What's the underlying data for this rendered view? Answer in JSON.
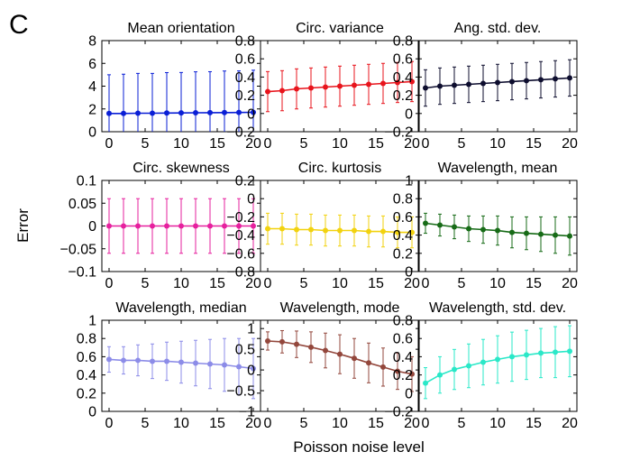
{
  "figure": {
    "panel_letter": "C",
    "ylabel": "Error",
    "xlabel": "Poisson noise level"
  },
  "chart_data": [
    {
      "type": "line",
      "title": "Mean orientation",
      "color": "#0a1fd6",
      "x": [
        0,
        2,
        4,
        6,
        8,
        10,
        12,
        14,
        16,
        18,
        20
      ],
      "y": [
        1.6,
        1.6,
        1.62,
        1.62,
        1.64,
        1.65,
        1.66,
        1.67,
        1.68,
        1.69,
        1.7
      ],
      "err": [
        3.4,
        3.45,
        3.5,
        3.5,
        3.55,
        3.55,
        3.6,
        3.6,
        3.65,
        3.65,
        3.7
      ],
      "ylim": [
        0,
        8
      ],
      "yticks": [
        "0",
        "2",
        "4",
        "6",
        "8"
      ],
      "xticks": [
        "0",
        "5",
        "10",
        "15",
        "20"
      ]
    },
    {
      "type": "line",
      "title": "Circ. variance",
      "color": "#e8141c",
      "x": [
        0,
        2,
        4,
        6,
        8,
        10,
        12,
        14,
        16,
        18,
        20
      ],
      "y": [
        0.24,
        0.25,
        0.27,
        0.28,
        0.29,
        0.3,
        0.31,
        0.32,
        0.33,
        0.34,
        0.35
      ],
      "err": [
        0.22,
        0.22,
        0.22,
        0.22,
        0.22,
        0.22,
        0.22,
        0.22,
        0.22,
        0.22,
        0.22
      ],
      "ylim": [
        -0.2,
        0.8
      ],
      "yticks": [
        "−0.2",
        "0",
        "0.2",
        "0.4",
        "0.6",
        "0.8"
      ],
      "xticks": [
        "0",
        "5",
        "10",
        "15",
        "20"
      ]
    },
    {
      "type": "line",
      "title": "Ang. std. dev.",
      "color": "#0d0d2e",
      "x": [
        0,
        2,
        4,
        6,
        8,
        10,
        12,
        14,
        16,
        18,
        20
      ],
      "y": [
        0.28,
        0.3,
        0.31,
        0.32,
        0.33,
        0.34,
        0.35,
        0.36,
        0.37,
        0.38,
        0.39
      ],
      "err": [
        0.2,
        0.2,
        0.2,
        0.2,
        0.2,
        0.2,
        0.2,
        0.2,
        0.2,
        0.2,
        0.2
      ],
      "ylim": [
        -0.2,
        0.8
      ],
      "yticks": [
        "−0.2",
        "0",
        "0.2",
        "0.4",
        "0.6",
        "0.8"
      ],
      "xticks": [
        "0",
        "5",
        "10",
        "15",
        "20"
      ]
    },
    {
      "type": "line",
      "title": "Circ. skewness",
      "color": "#e6209e",
      "x": [
        0,
        2,
        4,
        6,
        8,
        10,
        12,
        14,
        16,
        18,
        20
      ],
      "y": [
        0,
        0,
        0,
        0,
        0,
        0,
        0,
        0,
        0,
        0,
        0
      ],
      "err": [
        0.06,
        0.06,
        0.06,
        0.06,
        0.06,
        0.06,
        0.06,
        0.06,
        0.06,
        0.06,
        0.06
      ],
      "ylim": [
        -0.1,
        0.1
      ],
      "yticks": [
        "−0.1",
        "−0.05",
        "0",
        "0.05",
        "0.1"
      ],
      "xticks": [
        "0",
        "5",
        "10",
        "15",
        "20"
      ]
    },
    {
      "type": "line",
      "title": "Circ. kurtosis",
      "color": "#f2d20e",
      "x": [
        0,
        2,
        4,
        6,
        8,
        10,
        12,
        14,
        16,
        18,
        20
      ],
      "y": [
        -0.33,
        -0.33,
        -0.34,
        -0.34,
        -0.35,
        -0.35,
        -0.35,
        -0.36,
        -0.36,
        -0.37,
        -0.37
      ],
      "err": [
        0.17,
        0.17,
        0.17,
        0.17,
        0.17,
        0.17,
        0.17,
        0.17,
        0.17,
        0.17,
        0.17
      ],
      "ylim": [
        -0.8,
        0.2
      ],
      "yticks": [
        "−0.8",
        "−0.6",
        "−0.4",
        "−0.2",
        "0",
        "0.2"
      ],
      "xticks": [
        "0",
        "5",
        "10",
        "15",
        "20"
      ]
    },
    {
      "type": "line",
      "title": "Wavelength, mean",
      "color": "#176b17",
      "x": [
        0,
        2,
        4,
        6,
        8,
        10,
        12,
        14,
        16,
        18,
        20
      ],
      "y": [
        0.53,
        0.51,
        0.49,
        0.47,
        0.46,
        0.45,
        0.43,
        0.42,
        0.41,
        0.4,
        0.39
      ],
      "err": [
        0.11,
        0.12,
        0.13,
        0.14,
        0.15,
        0.16,
        0.17,
        0.18,
        0.19,
        0.2,
        0.21
      ],
      "ylim": [
        0,
        1
      ],
      "yticks": [
        "0",
        "0.2",
        "0.4",
        "0.6",
        "0.8",
        "1"
      ],
      "xticks": [
        "0",
        "5",
        "10",
        "15",
        "20"
      ]
    },
    {
      "type": "line",
      "title": "Wavelength, median",
      "color": "#8c8ce8",
      "x": [
        0,
        2,
        4,
        6,
        8,
        10,
        12,
        14,
        16,
        18,
        20
      ],
      "y": [
        0.57,
        0.56,
        0.56,
        0.55,
        0.55,
        0.54,
        0.53,
        0.52,
        0.51,
        0.49,
        0.47
      ],
      "err": [
        0.14,
        0.15,
        0.17,
        0.19,
        0.21,
        0.23,
        0.25,
        0.27,
        0.29,
        0.31,
        0.33
      ],
      "ylim": [
        0,
        1
      ],
      "yticks": [
        "0",
        "0.2",
        "0.4",
        "0.6",
        "0.8",
        "1"
      ],
      "xticks": [
        "0",
        "5",
        "10",
        "15",
        "20"
      ]
    },
    {
      "type": "line",
      "title": "Wavelength, mode",
      "color": "#93473c",
      "x": [
        0,
        2,
        4,
        6,
        8,
        10,
        12,
        14,
        16,
        18,
        20
      ],
      "y": [
        0.7,
        0.68,
        0.62,
        0.55,
        0.47,
        0.38,
        0.28,
        0.17,
        0.07,
        -0.03,
        -0.1
      ],
      "err": [
        0.22,
        0.27,
        0.32,
        0.37,
        0.42,
        0.47,
        0.48,
        0.48,
        0.46,
        0.44,
        0.42
      ],
      "ylim": [
        -1,
        1.2
      ],
      "yticks": [
        "−1",
        "−0.5",
        "0",
        "0.5",
        "1"
      ],
      "yticks_values": [
        -1,
        -0.5,
        0,
        0.5,
        1
      ],
      "xticks": [
        "0",
        "5",
        "10",
        "15",
        "20"
      ]
    },
    {
      "type": "line",
      "title": "Wavelength, std. dev.",
      "color": "#2ae8c8",
      "x": [
        0,
        2,
        4,
        6,
        8,
        10,
        12,
        14,
        16,
        18,
        20
      ],
      "y": [
        0.11,
        0.2,
        0.26,
        0.3,
        0.34,
        0.37,
        0.4,
        0.42,
        0.44,
        0.45,
        0.46
      ],
      "err": [
        0.17,
        0.2,
        0.22,
        0.24,
        0.25,
        0.26,
        0.27,
        0.27,
        0.27,
        0.28,
        0.28
      ],
      "ylim": [
        -0.2,
        0.8
      ],
      "yticks": [
        "−0.2",
        "0",
        "0.2",
        "0.4",
        "0.6",
        "0.8"
      ],
      "xticks": [
        "0",
        "5",
        "10",
        "15",
        "20"
      ]
    }
  ]
}
